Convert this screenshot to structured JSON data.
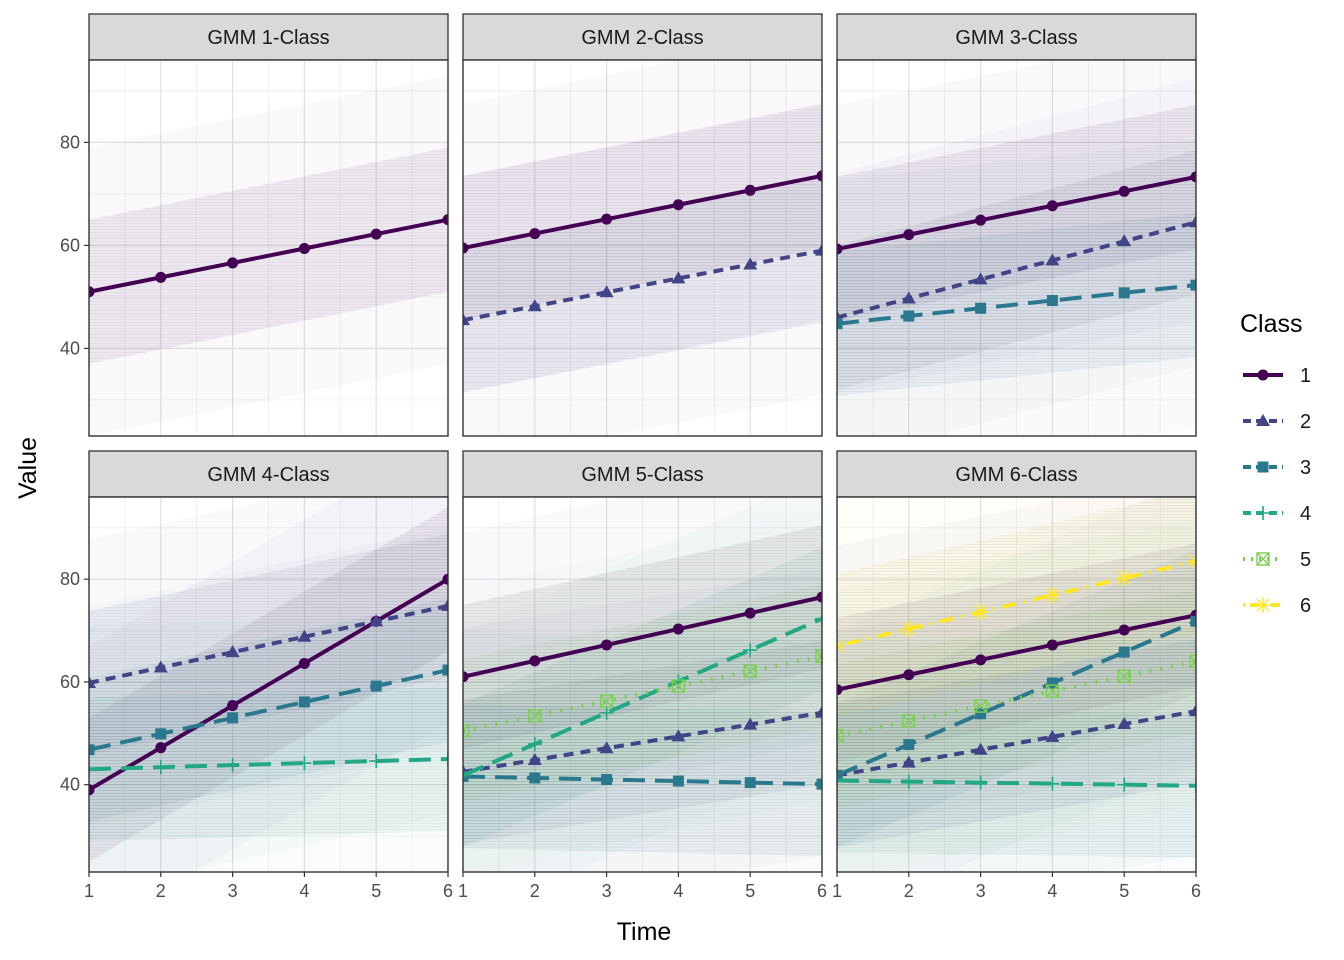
{
  "chart_data": {
    "type": "line",
    "xlabel": "Time",
    "ylabel": "Value",
    "x": [
      1,
      2,
      3,
      4,
      5,
      6
    ],
    "x_ticks": [
      "1",
      "2",
      "3",
      "4",
      "5",
      "6"
    ],
    "y_ticks": [
      "40",
      "60",
      "80"
    ],
    "xlim": [
      1,
      6
    ],
    "ylim": [
      23,
      96
    ],
    "grid": true,
    "legend": {
      "title": "Class",
      "position": "right",
      "entries": [
        "1",
        "2",
        "3",
        "4",
        "5",
        "6"
      ]
    },
    "class_styles": [
      {
        "class": "1",
        "color": "#440154",
        "dash": "solid",
        "marker": "circle"
      },
      {
        "class": "2",
        "color": "#414487",
        "dash": "dashed",
        "marker": "triangle"
      },
      {
        "class": "3",
        "color": "#2a788e",
        "dash": "longdash",
        "marker": "square"
      },
      {
        "class": "4",
        "color": "#22a884",
        "dash": "longdash",
        "marker": "plus"
      },
      {
        "class": "5",
        "color": "#7ad151",
        "dash": "dotted",
        "marker": "square-x"
      },
      {
        "class": "6",
        "color": "#fde725",
        "dash": "dotdash",
        "marker": "asterisk"
      }
    ],
    "panels": [
      {
        "title": "GMM 1-Class",
        "series": [
          {
            "name": "1",
            "values": [
              51,
              53.8,
              56.6,
              59.4,
              62.2,
              65
            ]
          }
        ]
      },
      {
        "title": "GMM 2-Class",
        "series": [
          {
            "name": "1",
            "values": [
              59.5,
              62.3,
              65.1,
              67.9,
              70.7,
              73.5
            ]
          },
          {
            "name": "2",
            "values": [
              45.5,
              48.2,
              50.9,
              53.6,
              56.3,
              59
            ]
          }
        ]
      },
      {
        "title": "GMM 3-Class",
        "series": [
          {
            "name": "1",
            "values": [
              59.3,
              62.1,
              64.9,
              67.7,
              70.5,
              73.3
            ]
          },
          {
            "name": "2",
            "values": [
              46,
              49.7,
              53.4,
              57.1,
              60.8,
              64.5
            ]
          },
          {
            "name": "3",
            "values": [
              44.8,
              46.3,
              47.8,
              49.3,
              50.8,
              52.3
            ]
          }
        ]
      },
      {
        "title": "GMM 4-Class",
        "series": [
          {
            "name": "1",
            "values": [
              39,
              47.2,
              55.4,
              63.6,
              71.8,
              80
            ]
          },
          {
            "name": "2",
            "values": [
              59.8,
              62.8,
              65.8,
              68.8,
              71.8,
              74.8
            ]
          },
          {
            "name": "3",
            "values": [
              46.8,
              49.9,
              53,
              56.1,
              59.2,
              62.3
            ]
          },
          {
            "name": "4",
            "values": [
              43,
              43.4,
              43.8,
              44.2,
              44.6,
              45
            ]
          }
        ]
      },
      {
        "title": "GMM 5-Class",
        "series": [
          {
            "name": "1",
            "values": [
              61,
              64.1,
              67.2,
              70.3,
              73.4,
              76.5
            ]
          },
          {
            "name": "2",
            "values": [
              42.5,
              44.8,
              47.1,
              49.4,
              51.7,
              54
            ]
          },
          {
            "name": "3",
            "values": [
              41.6,
              41.3,
              41,
              40.7,
              40.4,
              40.1
            ]
          },
          {
            "name": "4",
            "values": [
              41.8,
              47.9,
              54,
              60.1,
              66.2,
              72.3
            ]
          },
          {
            "name": "5",
            "values": [
              50.5,
              53.4,
              56.3,
              59.2,
              62.1,
              65
            ]
          }
        ]
      },
      {
        "title": "GMM 6-Class",
        "series": [
          {
            "name": "1",
            "values": [
              58.5,
              61.4,
              64.3,
              67.2,
              70.1,
              73
            ]
          },
          {
            "name": "2",
            "values": [
              41.8,
              44.3,
              46.8,
              49.3,
              51.8,
              54.3
            ]
          },
          {
            "name": "3",
            "values": [
              41.8,
              47.8,
              53.8,
              59.8,
              65.8,
              71.8
            ]
          },
          {
            "name": "4",
            "values": [
              40.8,
              40.6,
              40.4,
              40.2,
              40,
              39.8
            ]
          },
          {
            "name": "5",
            "values": [
              49.5,
              52.4,
              55.3,
              58.2,
              61.1,
              64
            ]
          },
          {
            "name": "6",
            "values": [
              67,
              70.3,
              73.6,
              76.9,
              80.2,
              83.5
            ]
          }
        ]
      }
    ]
  }
}
